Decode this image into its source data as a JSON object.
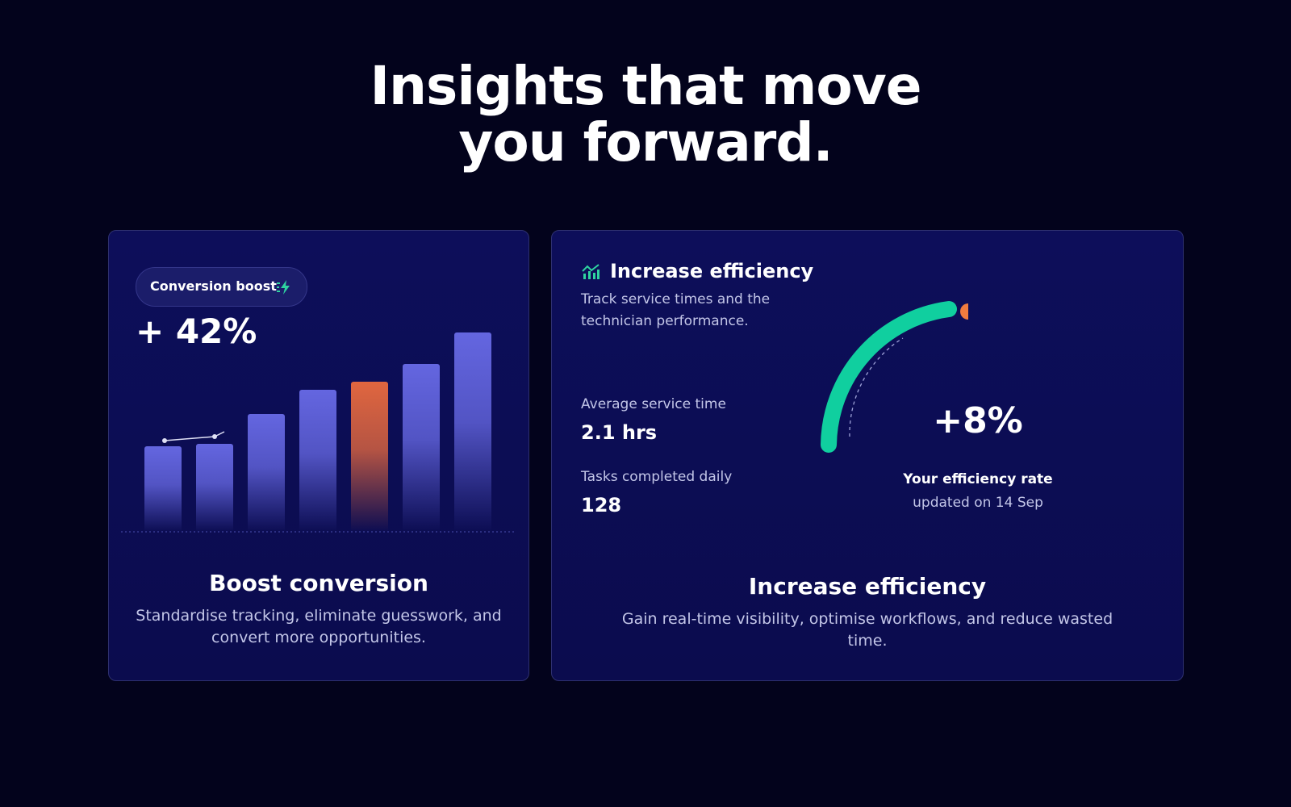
{
  "header": {
    "title": [
      "Insights that move",
      "you forward."
    ]
  },
  "cards": [
    {
      "badge": "Conversion boost",
      "metric": "+ 42%",
      "bars": [
        104,
        107,
        143,
        173,
        182,
        204,
        242
      ],
      "bar_colors": [
        "#6466e0",
        "#6466e0",
        "#6466e0",
        "#6466e0",
        "#e0663f",
        "#6466e0",
        "#6466e0"
      ],
      "title": "Boost conversion",
      "description": [
        "Standardise tracking, eliminate guesswork, and",
        "convert more opportunities."
      ]
    },
    {
      "heading": "Increase efficiency",
      "subheading": [
        "Track service times and the",
        "technician performance."
      ],
      "stats": [
        {
          "label": "Average service time",
          "value": "2.1 hrs"
        },
        {
          "label": "Tasks completed daily",
          "value": "128"
        }
      ],
      "gauge": {
        "value": "+8%",
        "label": "Your efficiency rate",
        "note": "updated on 14 Sep"
      },
      "title": "Increase efficiency",
      "description": [
        "Gain real-time visibility, optimise workflows, and reduce wasted",
        "time."
      ]
    }
  ]
}
